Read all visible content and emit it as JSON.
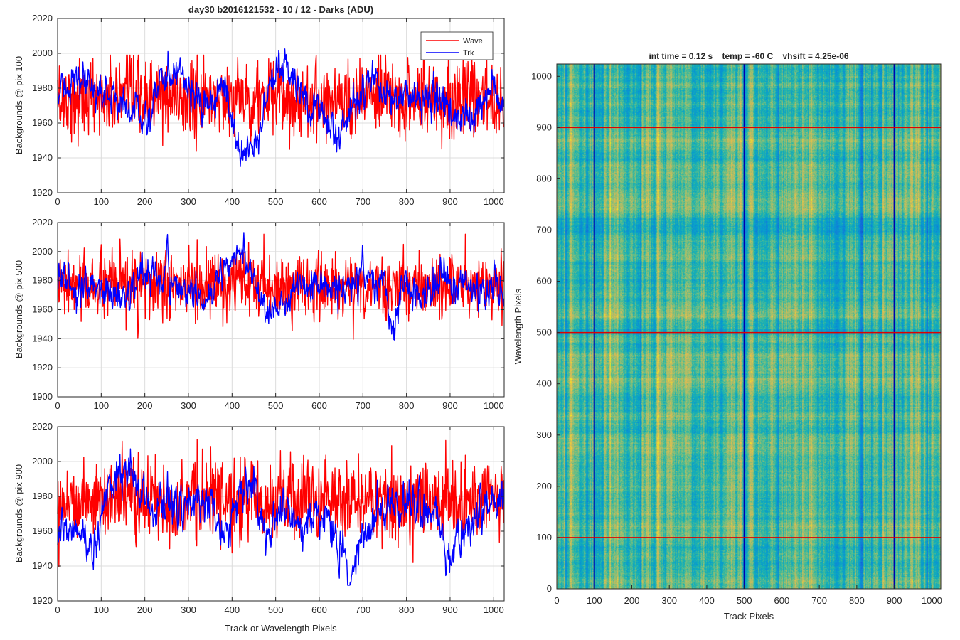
{
  "figure": {
    "main_title": "day30 b2016121532 - 10 / 12 - Darks (ADU)",
    "colors": {
      "wave": "#ff0000",
      "trk": "#0000ff",
      "grid": "#dcdcdc",
      "axis": "#262626"
    }
  },
  "chart_data": [
    {
      "type": "line",
      "title": "day30 b2016121532 - 10 / 12 - Darks (ADU)",
      "xlabel": "",
      "ylabel": "Backgrounds @ pix 100",
      "xlim": [
        0,
        1024
      ],
      "ylim": [
        1920,
        2020
      ],
      "xticks": [
        0,
        100,
        200,
        300,
        400,
        500,
        600,
        700,
        800,
        900,
        1000
      ],
      "yticks": [
        1920,
        1940,
        1960,
        1980,
        2000,
        2020
      ],
      "grid": true,
      "legend": {
        "location": "top-right",
        "entries": [
          "Wave",
          "Trk"
        ]
      },
      "series": [
        {
          "name": "Wave",
          "color": "#ff0000",
          "n_points": 1024,
          "mean": 1974,
          "noise_sd": 11,
          "min": 1923,
          "max": 1999
        },
        {
          "name": "Trk",
          "color": "#0000ff",
          "n_points": 1024,
          "mean": 1975,
          "trend_x": [
            0,
            30,
            60,
            100,
            150,
            200,
            250,
            280,
            300,
            340,
            380,
            420,
            450,
            480,
            520,
            560,
            600,
            640,
            680,
            720,
            760,
            800,
            840,
            880,
            920,
            960,
            1000,
            1024
          ],
          "trend_y": [
            1975,
            1985,
            1980,
            1978,
            1972,
            1962,
            1988,
            1994,
            1982,
            1965,
            1980,
            1945,
            1945,
            1975,
            1992,
            1975,
            1970,
            1952,
            1972,
            1985,
            1975,
            1975,
            1976,
            1975,
            1960,
            1962,
            1985,
            1965
          ],
          "noise_sd": 4.5,
          "min": 1935,
          "max": 2006
        }
      ]
    },
    {
      "type": "line",
      "xlabel": "",
      "ylabel": "Backgrounds @ pix 500",
      "xlim": [
        0,
        1024
      ],
      "ylim": [
        1900,
        2020
      ],
      "xticks": [
        0,
        100,
        200,
        300,
        400,
        500,
        600,
        700,
        800,
        900,
        1000
      ],
      "yticks": [
        1900,
        1920,
        1940,
        1960,
        1980,
        2000,
        2020
      ],
      "grid": true,
      "series": [
        {
          "name": "Wave",
          "color": "#ff0000",
          "n_points": 1024,
          "mean": 1976,
          "noise_sd": 11,
          "min": 1919,
          "max": 2012
        },
        {
          "name": "Trk",
          "color": "#0000ff",
          "n_points": 1024,
          "mean": 1977,
          "trend_x": [
            0,
            50,
            100,
            150,
            200,
            250,
            300,
            350,
            380,
            420,
            450,
            500,
            560,
            600,
            650,
            700,
            740,
            770,
            800,
            840,
            880,
            920,
            960,
            1000,
            1024
          ],
          "trend_y": [
            1985,
            1970,
            1975,
            1968,
            1985,
            1982,
            1972,
            1965,
            1990,
            2002,
            1980,
            1955,
            1978,
            1978,
            1972,
            1985,
            1978,
            1948,
            1978,
            1965,
            1985,
            1978,
            1975,
            1975,
            1965
          ],
          "noise_sd": 5,
          "min": 1929,
          "max": 2016
        }
      ]
    },
    {
      "type": "line",
      "xlabel": "Track or Wavelength Pixels",
      "ylabel": "Backgrounds @ pix 900",
      "xlim": [
        0,
        1024
      ],
      "ylim": [
        1920,
        2020
      ],
      "xticks": [
        0,
        100,
        200,
        300,
        400,
        500,
        600,
        700,
        800,
        900,
        1000
      ],
      "yticks": [
        1920,
        1940,
        1960,
        1980,
        2000,
        2020
      ],
      "grid": true,
      "series": [
        {
          "name": "Wave",
          "color": "#ff0000",
          "n_points": 1024,
          "mean": 1978,
          "noise_sd": 11,
          "min": 1932,
          "max": 2014
        },
        {
          "name": "Trk",
          "color": "#0000ff",
          "n_points": 1024,
          "mean": 1970,
          "trend_x": [
            0,
            40,
            80,
            120,
            160,
            190,
            220,
            260,
            300,
            340,
            380,
            420,
            440,
            480,
            520,
            560,
            600,
            640,
            670,
            700,
            740,
            780,
            820,
            860,
            900,
            940,
            980,
            1024
          ],
          "trend_y": [
            1955,
            1962,
            1950,
            1985,
            1998,
            1980,
            1975,
            1978,
            1972,
            1980,
            1962,
            1978,
            1985,
            1958,
            1975,
            1962,
            1972,
            1955,
            1935,
            1958,
            1972,
            1975,
            1978,
            1972,
            1945,
            1962,
            1972,
            1978
          ],
          "noise_sd": 5,
          "min": 1929,
          "max": 2010
        }
      ]
    },
    {
      "type": "heatmap",
      "title": "int time = 0.12 s    temp = -60 C    vhsift = 4.25e-06",
      "xlabel": "Track Pixels",
      "ylabel": "Wavelength Pixels",
      "xlim": [
        0,
        1024
      ],
      "ylim": [
        0,
        1024
      ],
      "xticks": [
        0,
        100,
        200,
        300,
        400,
        500,
        600,
        700,
        800,
        900,
        1000
      ],
      "yticks": [
        0,
        100,
        200,
        300,
        400,
        500,
        600,
        700,
        800,
        900,
        1000
      ],
      "colormap": "parula",
      "value_range": [
        1920,
        2020
      ],
      "markers": {
        "vertical_lines_x": [
          100,
          500,
          900
        ],
        "vertical_line_color": "#0000aa",
        "horizontal_lines_y": [
          100,
          500,
          900
        ],
        "horizontal_line_color": "#dd0000"
      }
    }
  ]
}
